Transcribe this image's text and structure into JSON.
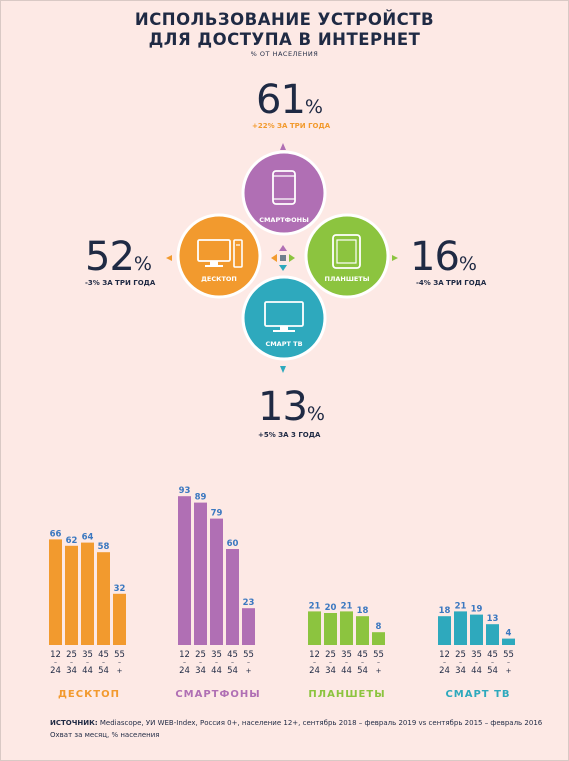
{
  "title_line1": "ИСПОЛЬЗОВАНИЕ УСТРОЙСТВ",
  "title_line2": "ДЛЯ ДОСТУПА В ИНТЕРНЕТ",
  "subtitle": "% ОТ НАСЕЛЕНИЯ",
  "devices": {
    "smartphones": {
      "label": "СМАРТФОНЫ",
      "value": "61",
      "unit": "%",
      "change": "+22% ЗА ТРИ ГОДА",
      "color": "#b06fb4",
      "change_color": "#f29a2e",
      "icon": "smartphone-icon"
    },
    "desktop": {
      "label": "ДЕСКТОП",
      "value": "52",
      "unit": "%",
      "change": "-3% ЗА ТРИ ГОДА",
      "color": "#f29a2e",
      "change_color": "#1f2a44",
      "icon": "desktop-icon"
    },
    "tablets": {
      "label": "ПЛАНШЕТЫ",
      "value": "16",
      "unit": "%",
      "change": "-4% ЗА ТРИ ГОДА",
      "color": "#8cc43f",
      "change_color": "#1f2a44",
      "icon": "tablet-icon"
    },
    "smarttv": {
      "label": "СМАРТ ТВ",
      "value": "13",
      "unit": "%",
      "change": "+5% ЗА 3 ГОДА",
      "color": "#2ea9bd",
      "change_color": "#1f2a44",
      "icon": "tv-icon"
    }
  },
  "age_groups": [
    [
      "12",
      "24"
    ],
    [
      "25",
      "34"
    ],
    [
      "35",
      "44"
    ],
    [
      "45",
      "54"
    ],
    [
      "55",
      "+"
    ]
  ],
  "chart_data": {
    "type": "bar",
    "categories": [
      "12–24",
      "25–34",
      "35–44",
      "45–54",
      "55+"
    ],
    "series": [
      {
        "name": "ДЕСКТОП",
        "values": [
          66,
          62,
          64,
          58,
          32
        ],
        "color": "#f29a2e"
      },
      {
        "name": "СМАРТФОНЫ",
        "values": [
          93,
          89,
          79,
          60,
          23
        ],
        "color": "#b06fb4"
      },
      {
        "name": "ПЛАНШЕТЫ",
        "values": [
          21,
          20,
          21,
          18,
          8
        ],
        "color": "#8cc43f"
      },
      {
        "name": "СМАРТ ТВ",
        "values": [
          18,
          21,
          19,
          13,
          4
        ],
        "color": "#2ea9bd"
      }
    ],
    "ylim": [
      0,
      100
    ]
  },
  "footer": {
    "source_label": "ИСТОЧНИК:",
    "source_text": " Mediascope, УИ WEB-Index, Россия 0+, население 12+, сентябрь 2018 – февраль 2019 vs сентябрь 2015 – февраль 2016",
    "note": "Охват за месяц, % населения"
  }
}
